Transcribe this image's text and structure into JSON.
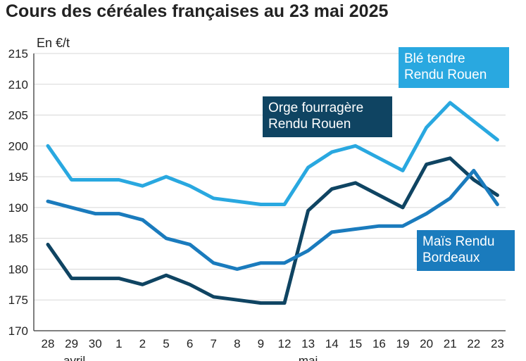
{
  "title": "Cours des céréales françaises au 23 mai 2025",
  "chart_data": {
    "type": "line",
    "ylabel": "En €/t",
    "ylim": [
      170,
      215
    ],
    "yticks": [
      170,
      175,
      180,
      185,
      190,
      195,
      200,
      205,
      210,
      215
    ],
    "grid": true,
    "categories": [
      "28",
      "29",
      "30",
      "1",
      "2",
      "5",
      "6",
      "7",
      "8",
      "9",
      "12",
      "13",
      "14",
      "15",
      "16",
      "19",
      "20",
      "21",
      "22",
      "23"
    ],
    "month_labels": [
      {
        "label": "avril",
        "index": 1
      },
      {
        "label": "mai",
        "index": 11
      }
    ],
    "series": [
      {
        "name": "Blé tendre Rendu Rouen",
        "label_lines": [
          "Blé tendre",
          "Rendu Rouen"
        ],
        "color": "#29a8e0",
        "values": [
          200,
          194.5,
          194.5,
          194.5,
          193.5,
          195,
          193.5,
          191.5,
          191,
          190.5,
          190.5,
          196.5,
          199,
          200,
          198,
          196,
          203,
          207,
          204,
          201
        ]
      },
      {
        "name": "Orge fourragère Rendu Rouen",
        "label_lines": [
          "Orge fourragère",
          "Rendu Rouen"
        ],
        "color": "#0f4462",
        "values": [
          184,
          178.5,
          178.5,
          178.5,
          177.5,
          179,
          177.5,
          175.5,
          175,
          174.5,
          174.5,
          189.5,
          193,
          194,
          192,
          190,
          197,
          198,
          194.5,
          192
        ]
      },
      {
        "name": "Maïs Rendu Bordeaux",
        "label_lines": [
          "Maïs Rendu",
          "Bordeaux"
        ],
        "color": "#1a7bbd",
        "values": [
          191,
          190,
          189,
          189,
          188,
          185,
          184,
          181,
          180,
          181,
          181,
          183,
          186,
          186.5,
          187,
          187,
          189,
          191.5,
          196,
          190.5
        ]
      }
    ]
  }
}
